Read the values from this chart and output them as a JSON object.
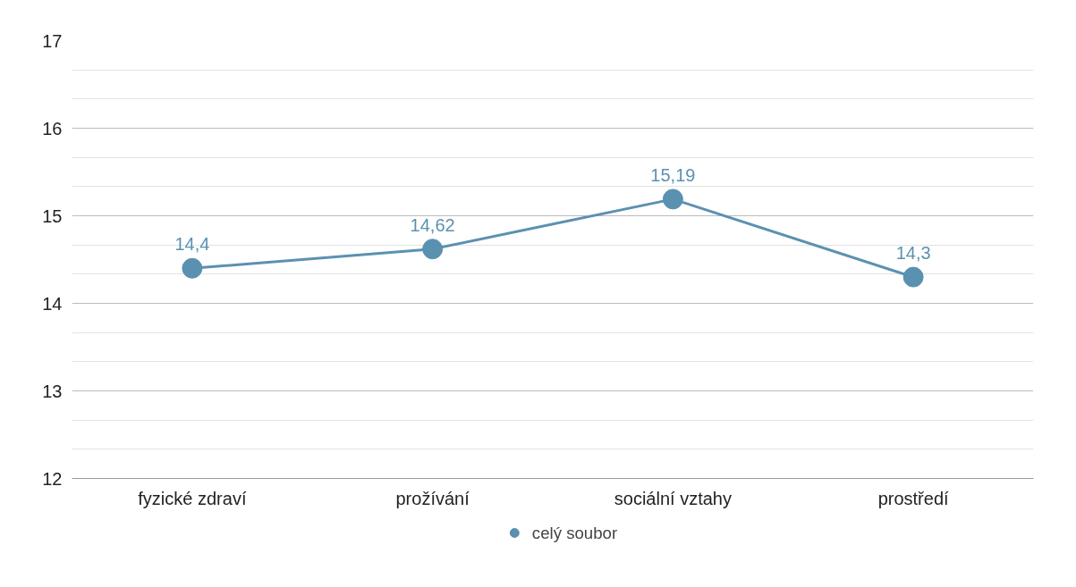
{
  "chart_data": {
    "type": "line",
    "categories": [
      "fyzické zdraví",
      "prožívání",
      "sociální vztahy",
      "prostředí"
    ],
    "series": [
      {
        "name": "celý soubor",
        "color": "#5b91b0",
        "values": [
          14.4,
          14.62,
          15.19,
          14.3
        ],
        "value_labels": [
          "14,4",
          "14,62",
          "15,19",
          "14,3"
        ]
      }
    ],
    "ylim": [
      12,
      17
    ],
    "yticks": [
      12,
      13,
      14,
      15,
      16,
      17
    ],
    "grid": "y",
    "legend": "bottom",
    "marker": "circle",
    "line_style": "solid"
  }
}
